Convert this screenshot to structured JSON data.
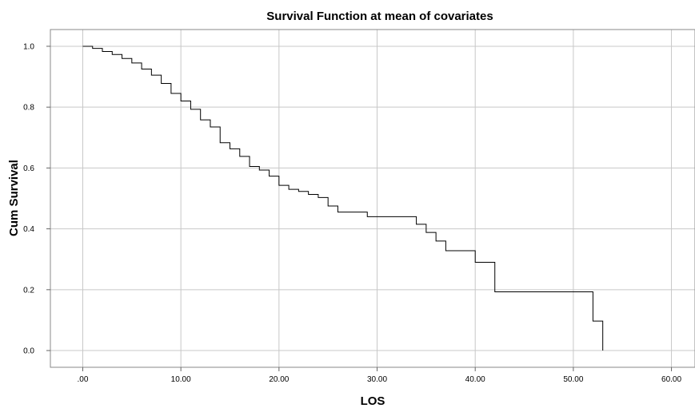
{
  "chart_data": {
    "type": "line",
    "title": "Survival Function at mean of covariates",
    "xlabel": "LOS",
    "ylabel": "Cum Survival",
    "xlim": [
      -3.3,
      62.4
    ],
    "ylim": [
      -0.055,
      1.055
    ],
    "xticks": [
      0,
      10,
      20,
      30,
      40,
      50,
      60
    ],
    "xtick_labels": [
      ".00",
      "10.00",
      "20.00",
      "30.00",
      "40.00",
      "50.00",
      "60.00"
    ],
    "yticks": [
      0.0,
      0.2,
      0.4,
      0.6,
      0.8,
      1.0
    ],
    "ytick_labels": [
      "0.0",
      "0.2",
      "0.4",
      "0.6",
      "0.8",
      "1.0"
    ],
    "grid": true,
    "legend": "none",
    "series": [
      {
        "step": "post",
        "x": [
          0,
          1,
          2,
          3,
          4,
          5,
          6,
          7,
          8,
          9,
          10,
          11,
          12,
          13,
          14,
          15,
          16,
          17,
          18,
          19,
          20,
          21,
          22,
          23,
          24,
          25,
          26,
          29,
          34,
          35,
          36,
          37,
          40,
          42,
          52,
          53
        ],
        "y": [
          1.0,
          0.993,
          0.983,
          0.973,
          0.96,
          0.945,
          0.925,
          0.905,
          0.878,
          0.845,
          0.82,
          0.793,
          0.758,
          0.735,
          0.683,
          0.663,
          0.638,
          0.605,
          0.593,
          0.573,
          0.543,
          0.53,
          0.523,
          0.513,
          0.503,
          0.475,
          0.455,
          0.44,
          0.415,
          0.388,
          0.36,
          0.328,
          0.29,
          0.193,
          0.097,
          0.0
        ]
      }
    ]
  }
}
